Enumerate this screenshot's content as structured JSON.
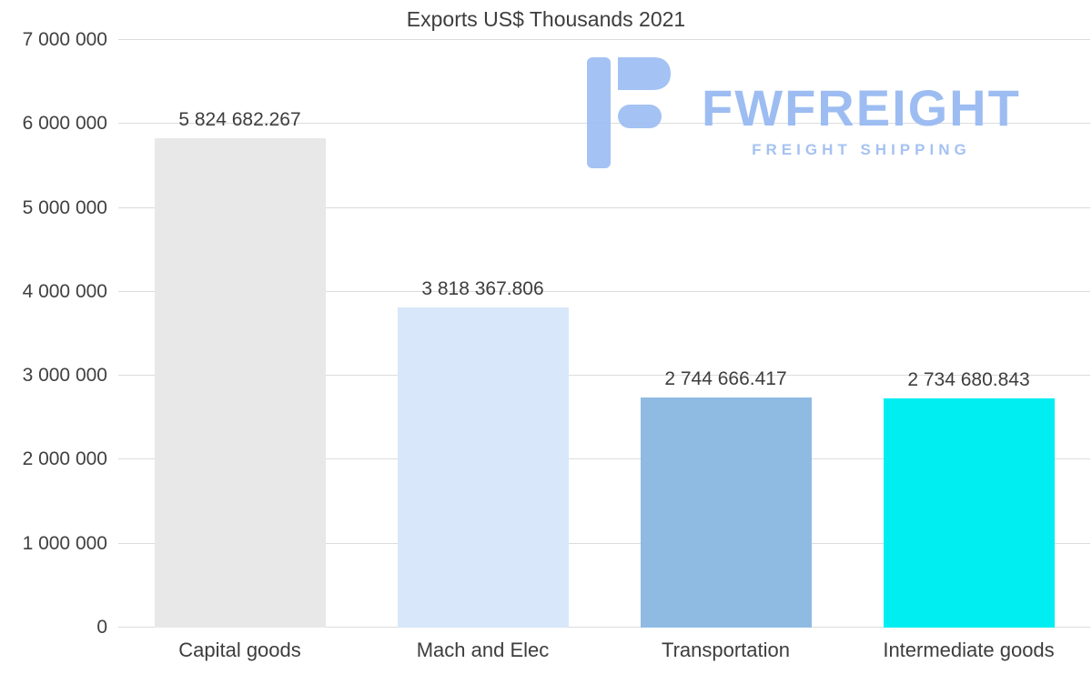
{
  "title": "Exports US$ Thousands 2021",
  "watermark": {
    "brand": "FWFREIGHT",
    "tagline": "FREIGHT SHIPPING",
    "color": "#9dbdf2"
  },
  "colors": {
    "text": "#3d3d3d",
    "gridline": "#dcdcdc",
    "background": "#ffffff"
  },
  "chart_data": {
    "type": "bar",
    "title": "Exports US$ Thousands 2021",
    "categories": [
      "Capital goods",
      "Mach and Elec",
      "Transportation",
      "Intermediate goods"
    ],
    "values": [
      5824682.267,
      3818367.806,
      2744666.417,
      2734680.843
    ],
    "value_labels": [
      "5 824 682.267",
      "3 818 367.806",
      "2 744 666.417",
      "2 734 680.843"
    ],
    "bar_colors": [
      "#e8e8e8",
      "#d8e7f9",
      "#8fbbe3",
      "#00eef2"
    ],
    "xlabel": "",
    "ylabel": "",
    "ylim": [
      0,
      7000000
    ],
    "grid": true,
    "legend": false,
    "yticks": [
      {
        "value": 0,
        "label": "0"
      },
      {
        "value": 1000000,
        "label": "1 000 000"
      },
      {
        "value": 2000000,
        "label": "2 000 000"
      },
      {
        "value": 3000000,
        "label": "3 000 000"
      },
      {
        "value": 4000000,
        "label": "4 000 000"
      },
      {
        "value": 5000000,
        "label": "5 000 000"
      },
      {
        "value": 6000000,
        "label": "6 000 000"
      },
      {
        "value": 7000000,
        "label": "7 000 000"
      }
    ]
  }
}
